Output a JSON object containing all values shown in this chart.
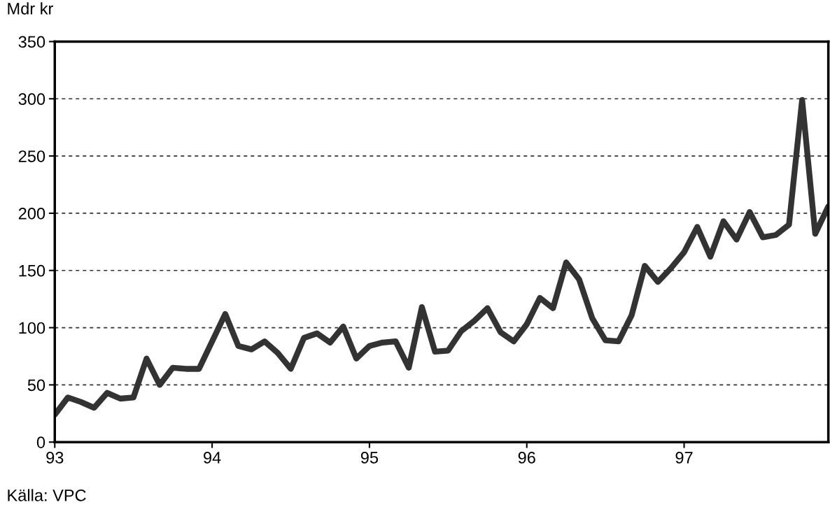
{
  "chart_data": {
    "type": "line",
    "ylabel": "Mdr kr",
    "annotations": [
      "Källa: VPC"
    ],
    "x": [
      "1993-01",
      "1993-02",
      "1993-03",
      "1993-04",
      "1993-05",
      "1993-06",
      "1993-07",
      "1993-08",
      "1993-09",
      "1993-10",
      "1993-11",
      "1993-12",
      "1994-01",
      "1994-02",
      "1994-03",
      "1994-04",
      "1994-05",
      "1994-06",
      "1994-07",
      "1994-08",
      "1994-09",
      "1994-10",
      "1994-11",
      "1994-12",
      "1995-01",
      "1995-02",
      "1995-03",
      "1995-04",
      "1995-05",
      "1995-06",
      "1995-07",
      "1995-08",
      "1995-09",
      "1995-10",
      "1995-11",
      "1995-12",
      "1996-01",
      "1996-02",
      "1996-03",
      "1996-04",
      "1996-05",
      "1996-06",
      "1996-07",
      "1996-08",
      "1996-09",
      "1996-10",
      "1996-11",
      "1996-12",
      "1997-01",
      "1997-02",
      "1997-03",
      "1997-04",
      "1997-05",
      "1997-06",
      "1997-07",
      "1997-08",
      "1997-09",
      "1997-10",
      "1997-11",
      "1997-12"
    ],
    "series": [
      {
        "color": "#333333",
        "values": [
          24,
          39,
          35,
          30,
          43,
          38,
          39,
          73,
          50,
          65,
          64,
          64,
          88,
          112,
          84,
          81,
          88,
          78,
          64,
          91,
          95,
          87,
          101,
          73,
          84,
          87,
          88,
          65,
          118,
          79,
          80,
          97,
          106,
          117,
          96,
          88,
          103,
          126,
          117,
          157,
          142,
          108,
          89,
          88,
          111,
          154,
          140,
          152,
          166,
          188,
          162,
          193,
          177,
          201,
          179,
          181,
          190,
          299,
          182,
          206
        ]
      }
    ],
    "xlim": [
      "1993-01",
      "1997-12"
    ],
    "xticks": [
      {
        "value": "1993-01",
        "label": "93"
      },
      {
        "value": "1994-01",
        "label": "94"
      },
      {
        "value": "1995-01",
        "label": "95"
      },
      {
        "value": "1996-01",
        "label": "96"
      },
      {
        "value": "1997-01",
        "label": "97"
      }
    ],
    "ylim": [
      0,
      350
    ],
    "yticks": [
      0,
      50,
      100,
      150,
      200,
      250,
      300,
      350
    ],
    "grid": "y",
    "line_style": "solid",
    "marker": "none"
  }
}
